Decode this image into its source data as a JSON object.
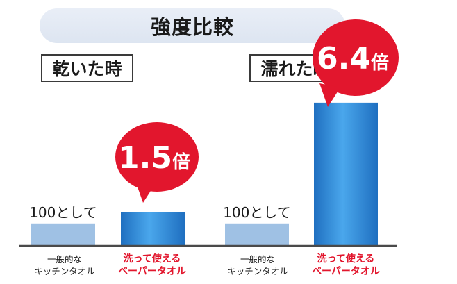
{
  "chart_data": {
    "type": "bar",
    "title": "強度比較",
    "ylim": [
      0,
      680
    ],
    "colors": {
      "baseline_bar": "#9fc1e4",
      "highlight_bar": "#2b86d6",
      "bubble": "#e2162d",
      "axis": "#4a4a4a"
    },
    "groups": [
      {
        "name": "乾いた時",
        "bars": [
          {
            "label": [
              "一般的な",
              "キッチンタオル"
            ],
            "value": 100,
            "data_label": "100として",
            "highlight": false
          },
          {
            "label": [
              "洗って使える",
              "ペーパータオル"
            ],
            "value": 150,
            "callout": {
              "number": "1.5",
              "unit": "倍"
            },
            "highlight": true
          }
        ]
      },
      {
        "name": "濡れた時",
        "bars": [
          {
            "label": [
              "一般的な",
              "キッチンタオル"
            ],
            "value": 100,
            "data_label": "100として",
            "highlight": false
          },
          {
            "label": [
              "洗って使える",
              "ペーパータオル"
            ],
            "value": 640,
            "callout": {
              "number": "6.4",
              "unit": "倍"
            },
            "highlight": true
          }
        ]
      }
    ]
  }
}
